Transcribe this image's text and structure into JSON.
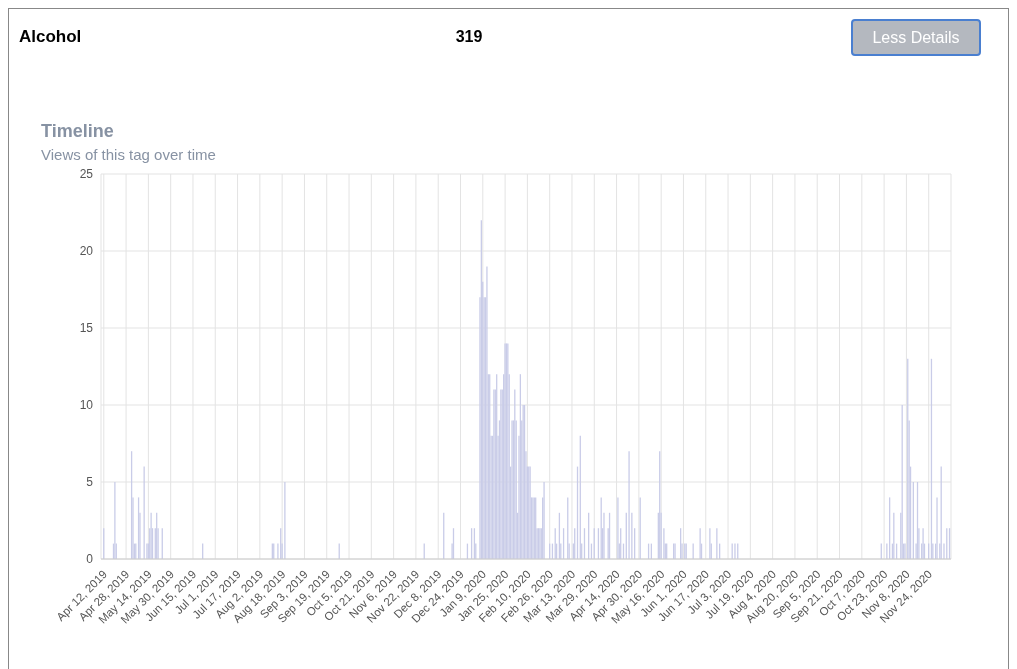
{
  "chart_data": {
    "type": "bar",
    "title": "Timeline",
    "subtitle": "Views of this tag over time",
    "annotations": [
      "Alcohol",
      "319",
      "Less Details"
    ],
    "x": [
      "2019-04-12",
      "2019-04-19",
      "2019-04-20",
      "2019-04-21",
      "2019-05-02",
      "2019-05-03",
      "2019-05-04",
      "2019-05-05",
      "2019-05-07",
      "2019-05-08",
      "2019-05-11",
      "2019-05-13",
      "2019-05-14",
      "2019-05-15",
      "2019-05-16",
      "2019-05-17",
      "2019-05-19",
      "2019-05-20",
      "2019-05-21",
      "2019-05-24",
      "2019-06-22",
      "2019-08-11",
      "2019-08-12",
      "2019-08-15",
      "2019-08-17",
      "2019-08-18",
      "2019-08-20",
      "2019-09-28",
      "2019-11-28",
      "2019-12-12",
      "2019-12-18",
      "2019-12-19",
      "2019-12-29",
      "2020-01-01",
      "2020-01-03",
      "2020-01-04",
      "2020-01-07",
      "2020-01-08",
      "2020-01-09",
      "2020-01-10",
      "2020-01-11",
      "2020-01-12",
      "2020-01-13",
      "2020-01-14",
      "2020-01-15",
      "2020-01-16",
      "2020-01-17",
      "2020-01-18",
      "2020-01-19",
      "2020-01-20",
      "2020-01-21",
      "2020-01-22",
      "2020-01-23",
      "2020-01-24",
      "2020-01-25",
      "2020-01-26",
      "2020-01-27",
      "2020-01-28",
      "2020-01-29",
      "2020-01-30",
      "2020-01-31",
      "2020-02-01",
      "2020-02-02",
      "2020-02-03",
      "2020-02-04",
      "2020-02-05",
      "2020-02-06",
      "2020-02-07",
      "2020-02-08",
      "2020-02-09",
      "2020-02-10",
      "2020-02-11",
      "2020-02-12",
      "2020-02-13",
      "2020-02-14",
      "2020-02-15",
      "2020-02-16",
      "2020-02-17",
      "2020-02-18",
      "2020-02-19",
      "2020-02-20",
      "2020-02-21",
      "2020-02-22",
      "2020-02-26",
      "2020-02-28",
      "2020-03-01",
      "2020-03-02",
      "2020-03-04",
      "2020-03-05",
      "2020-03-07",
      "2020-03-10",
      "2020-03-11",
      "2020-03-14",
      "2020-03-15",
      "2020-03-17",
      "2020-03-19",
      "2020-03-20",
      "2020-03-22",
      "2020-03-25",
      "2020-03-27",
      "2020-03-29",
      "2020-04-01",
      "2020-04-03",
      "2020-04-04",
      "2020-04-05",
      "2020-04-08",
      "2020-04-09",
      "2020-04-15",
      "2020-04-16",
      "2020-04-17",
      "2020-04-19",
      "2020-04-21",
      "2020-04-23",
      "2020-04-25",
      "2020-04-27",
      "2020-05-01",
      "2020-05-07",
      "2020-05-09",
      "2020-05-14",
      "2020-05-15",
      "2020-05-16",
      "2020-05-18",
      "2020-05-19",
      "2020-05-20",
      "2020-05-25",
      "2020-05-26",
      "2020-05-30",
      "2020-05-31",
      "2020-06-02",
      "2020-06-03",
      "2020-06-08",
      "2020-06-13",
      "2020-06-14",
      "2020-06-20",
      "2020-06-21",
      "2020-06-25",
      "2020-06-27",
      "2020-07-06",
      "2020-07-08",
      "2020-07-10",
      "2020-10-21",
      "2020-10-25",
      "2020-10-27",
      "2020-10-29",
      "2020-10-30",
      "2020-11-01",
      "2020-11-04",
      "2020-11-05",
      "2020-11-06",
      "2020-11-07",
      "2020-11-09",
      "2020-11-10",
      "2020-11-11",
      "2020-11-13",
      "2020-11-15",
      "2020-11-16",
      "2020-11-17",
      "2020-11-19",
      "2020-11-20",
      "2020-11-21",
      "2020-11-24",
      "2020-11-26",
      "2020-11-27",
      "2020-11-29",
      "2020-11-30",
      "2020-12-02",
      "2020-12-03",
      "2020-12-05",
      "2020-12-07",
      "2020-12-09"
    ],
    "values": [
      2,
      1,
      5,
      1,
      7,
      4,
      1,
      1,
      4,
      3,
      6,
      1,
      1,
      2,
      3,
      2,
      2,
      3,
      2,
      2,
      1,
      1,
      1,
      1,
      2,
      1,
      5,
      1,
      1,
      3,
      1,
      2,
      1,
      2,
      2,
      1,
      17,
      22,
      18,
      17,
      17,
      19,
      12,
      12,
      8,
      8,
      11,
      11,
      12,
      8,
      9,
      11,
      11,
      12,
      14,
      14,
      14,
      12,
      6,
      9,
      9,
      11,
      9,
      3,
      8,
      12,
      9,
      10,
      10,
      7,
      6,
      6,
      6,
      4,
      4,
      4,
      4,
      2,
      2,
      2,
      2,
      4,
      5,
      1,
      1,
      2,
      1,
      3,
      1,
      2,
      4,
      1,
      1,
      2,
      6,
      8,
      1,
      2,
      3,
      1,
      2,
      2,
      4,
      2,
      3,
      2,
      3,
      4,
      1,
      2,
      1,
      3,
      7,
      3,
      2,
      4,
      1,
      1,
      3,
      7,
      3,
      2,
      1,
      1,
      1,
      1,
      2,
      1,
      1,
      1,
      1,
      2,
      1,
      2,
      1,
      2,
      1,
      1,
      1,
      1,
      1,
      1,
      4,
      1,
      3,
      1,
      3,
      10,
      1,
      1,
      13,
      9,
      6,
      5,
      1,
      5,
      2,
      1,
      2,
      1,
      1,
      13,
      1,
      1,
      4,
      1,
      6,
      1,
      2,
      2
    ],
    "color": "#c9cce8",
    "xlim": [
      "2019-04-10",
      "2020-12-10"
    ],
    "xticks": [
      {
        "value": "2019-04-12",
        "label": "Apr 12, 2019"
      },
      {
        "value": "2019-04-28",
        "label": "Apr 28, 2019"
      },
      {
        "value": "2019-05-14",
        "label": "May 14, 2019"
      },
      {
        "value": "2019-05-30",
        "label": "May 30, 2019"
      },
      {
        "value": "2019-06-15",
        "label": "Jun 15, 2019"
      },
      {
        "value": "2019-07-01",
        "label": "Jul 1, 2019"
      },
      {
        "value": "2019-07-17",
        "label": "Jul 17, 2019"
      },
      {
        "value": "2019-08-02",
        "label": "Aug 2, 2019"
      },
      {
        "value": "2019-08-18",
        "label": "Aug 18, 2019"
      },
      {
        "value": "2019-09-03",
        "label": "Sep 3, 2019"
      },
      {
        "value": "2019-09-19",
        "label": "Sep 19, 2019"
      },
      {
        "value": "2019-10-05",
        "label": "Oct 5, 2019"
      },
      {
        "value": "2019-10-21",
        "label": "Oct 21, 2019"
      },
      {
        "value": "2019-11-06",
        "label": "Nov 6, 2019"
      },
      {
        "value": "2019-11-22",
        "label": "Nov 22, 2019"
      },
      {
        "value": "2019-12-08",
        "label": "Dec 8, 2019"
      },
      {
        "value": "2019-12-24",
        "label": "Dec 24, 2019"
      },
      {
        "value": "2020-01-09",
        "label": "Jan 9, 2020"
      },
      {
        "value": "2020-01-25",
        "label": "Jan 25, 2020"
      },
      {
        "value": "2020-02-10",
        "label": "Feb 10, 2020"
      },
      {
        "value": "2020-02-26",
        "label": "Feb 26, 2020"
      },
      {
        "value": "2020-03-13",
        "label": "Mar 13, 2020"
      },
      {
        "value": "2020-03-29",
        "label": "Mar 29, 2020"
      },
      {
        "value": "2020-04-14",
        "label": "Apr 14, 2020"
      },
      {
        "value": "2020-04-30",
        "label": "Apr 30, 2020"
      },
      {
        "value": "2020-05-16",
        "label": "May 16, 2020"
      },
      {
        "value": "2020-06-01",
        "label": "Jun 1, 2020"
      },
      {
        "value": "2020-06-17",
        "label": "Jun 17, 2020"
      },
      {
        "value": "2020-07-03",
        "label": "Jul 3, 2020"
      },
      {
        "value": "2020-07-19",
        "label": "Jul 19, 2020"
      },
      {
        "value": "2020-08-04",
        "label": "Aug 4, 2020"
      },
      {
        "value": "2020-08-20",
        "label": "Aug 20, 2020"
      },
      {
        "value": "2020-09-05",
        "label": "Sep 5, 2020"
      },
      {
        "value": "2020-09-21",
        "label": "Sep 21, 2020"
      },
      {
        "value": "2020-10-07",
        "label": "Oct 7, 2020"
      },
      {
        "value": "2020-10-23",
        "label": "Oct 23, 2020"
      },
      {
        "value": "2020-11-08",
        "label": "Nov 8, 2020"
      },
      {
        "value": "2020-11-24",
        "label": "Nov 24, 2020"
      }
    ],
    "ylim": [
      0,
      25
    ],
    "yticks": [
      0,
      5,
      10,
      15,
      20,
      25
    ],
    "grid": true
  }
}
